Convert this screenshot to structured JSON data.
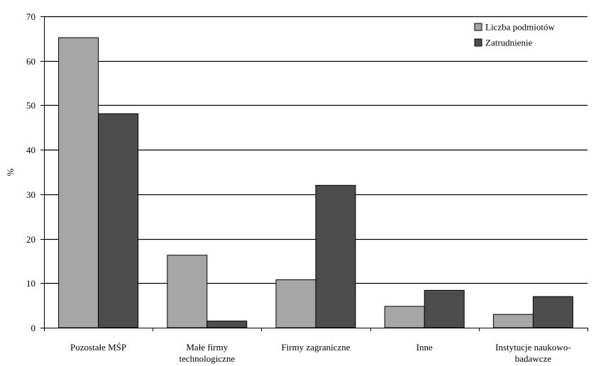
{
  "chart_data": {
    "type": "bar",
    "title": "",
    "xlabel": "",
    "ylabel": "%",
    "ylim": [
      0,
      70
    ],
    "yticks": [
      0,
      10,
      20,
      30,
      40,
      50,
      60,
      70
    ],
    "grid": true,
    "legend_position": "top-right",
    "categories": [
      [
        "Pozostałe MŚP"
      ],
      [
        "Małe firmy",
        "technologiczne"
      ],
      [
        "Firmy zagraniczne"
      ],
      [
        "Inne"
      ],
      [
        "Instytucje naukowo-",
        "badawcze"
      ]
    ],
    "series": [
      {
        "name": "Liczba podmiotów",
        "color": "#a6a6a6",
        "values": [
          65.2,
          16.3,
          10.8,
          4.8,
          3.0
        ]
      },
      {
        "name": "Zatrudnienie",
        "color": "#4d4d4d",
        "values": [
          48.1,
          1.5,
          32.0,
          8.4,
          7.0
        ]
      }
    ]
  }
}
